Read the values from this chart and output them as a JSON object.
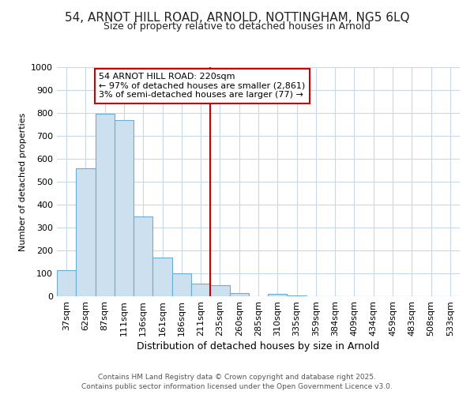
{
  "title1": "54, ARNOT HILL ROAD, ARNOLD, NOTTINGHAM, NG5 6LQ",
  "title2": "Size of property relative to detached houses in Arnold",
  "xlabel": "Distribution of detached houses by size in Arnold",
  "ylabel": "Number of detached properties",
  "categories": [
    "37sqm",
    "62sqm",
    "87sqm",
    "111sqm",
    "136sqm",
    "161sqm",
    "186sqm",
    "211sqm",
    "235sqm",
    "260sqm",
    "285sqm",
    "310sqm",
    "335sqm",
    "359sqm",
    "384sqm",
    "409sqm",
    "434sqm",
    "459sqm",
    "483sqm",
    "508sqm",
    "533sqm"
  ],
  "values": [
    115,
    560,
    795,
    770,
    350,
    170,
    100,
    55,
    50,
    15,
    0,
    10,
    5,
    0,
    0,
    0,
    0,
    0,
    0,
    0,
    0
  ],
  "bar_color": "#cce0f0",
  "bar_edge_color": "#6aaed6",
  "red_line_x": 7.5,
  "annotation_line1": "54 ARNOT HILL ROAD: 220sqm",
  "annotation_line2": "← 97% of detached houses are smaller (2,861)",
  "annotation_line3": "3% of semi-detached houses are larger (77) →",
  "annotation_box_facecolor": "#ffffff",
  "annotation_box_edgecolor": "#cc0000",
  "red_line_color": "#cc0000",
  "ylim": [
    0,
    1000
  ],
  "yticks": [
    0,
    100,
    200,
    300,
    400,
    500,
    600,
    700,
    800,
    900,
    1000
  ],
  "background_color": "#ffffff",
  "plot_background": "#ffffff",
  "grid_color": "#c8d8e8",
  "footer1": "Contains HM Land Registry data © Crown copyright and database right 2025.",
  "footer2": "Contains public sector information licensed under the Open Government Licence v3.0.",
  "title1_fontsize": 11,
  "title2_fontsize": 9,
  "xlabel_fontsize": 9,
  "ylabel_fontsize": 8,
  "tick_fontsize": 8,
  "annot_fontsize": 8,
  "footer_fontsize": 6.5
}
